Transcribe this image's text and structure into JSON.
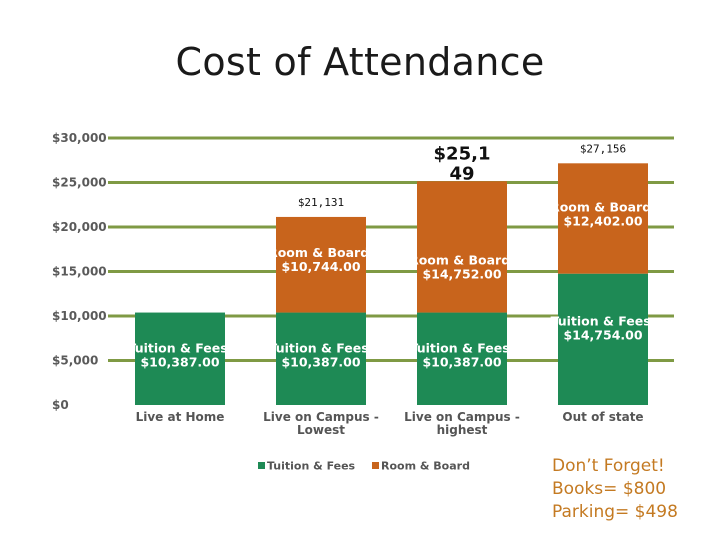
{
  "title": "Cost of Attendance",
  "chart_data": {
    "type": "bar",
    "stacked": true,
    "categories": [
      [
        "Live at Home"
      ],
      [
        "Live on Campus -",
        "Lowest"
      ],
      [
        "Live on Campus -",
        "highest"
      ],
      [
        "Out of state"
      ]
    ],
    "series": [
      {
        "name": "Tuition & Fees",
        "color": "#1e8a55",
        "values": [
          10387,
          10387,
          10387,
          14754
        ],
        "labels": [
          [
            "Tuition & Fees,",
            "$10,387.00"
          ],
          [
            "Tuition & Fees,",
            "$10,387.00"
          ],
          [
            "Tuition & Fees,",
            "$10,387.00"
          ],
          [
            "Tuition & Fees,",
            "$14,754.00"
          ]
        ]
      },
      {
        "name": "Room & Board",
        "color": "#c8641c",
        "values": [
          0,
          10744,
          14752,
          12402
        ],
        "labels": [
          null,
          [
            "Room & Board,",
            "$10,744.00"
          ],
          [
            "Room & Board,",
            "$14,752.00"
          ],
          [
            "Room & Board,",
            "$12,402.00"
          ]
        ]
      }
    ],
    "totals": [
      null,
      {
        "text": [
          "$21,131"
        ],
        "style": "small"
      },
      {
        "text": [
          "$25,1",
          "49"
        ],
        "style": "large"
      },
      {
        "text": [
          "$27,156"
        ],
        "style": "small"
      }
    ],
    "ylim": [
      0,
      30000
    ],
    "yticks": [
      0,
      5000,
      10000,
      15000,
      20000,
      25000,
      30000
    ],
    "ytick_labels": [
      "$0",
      "$5,000",
      "$10,000",
      "$15,000",
      "$20,000",
      "$25,000",
      "$30,000"
    ],
    "grid": true,
    "legend": "bottom"
  },
  "note": {
    "lines": [
      "Don’t Forget!",
      "Books= $800",
      "Parking= $498"
    ]
  }
}
